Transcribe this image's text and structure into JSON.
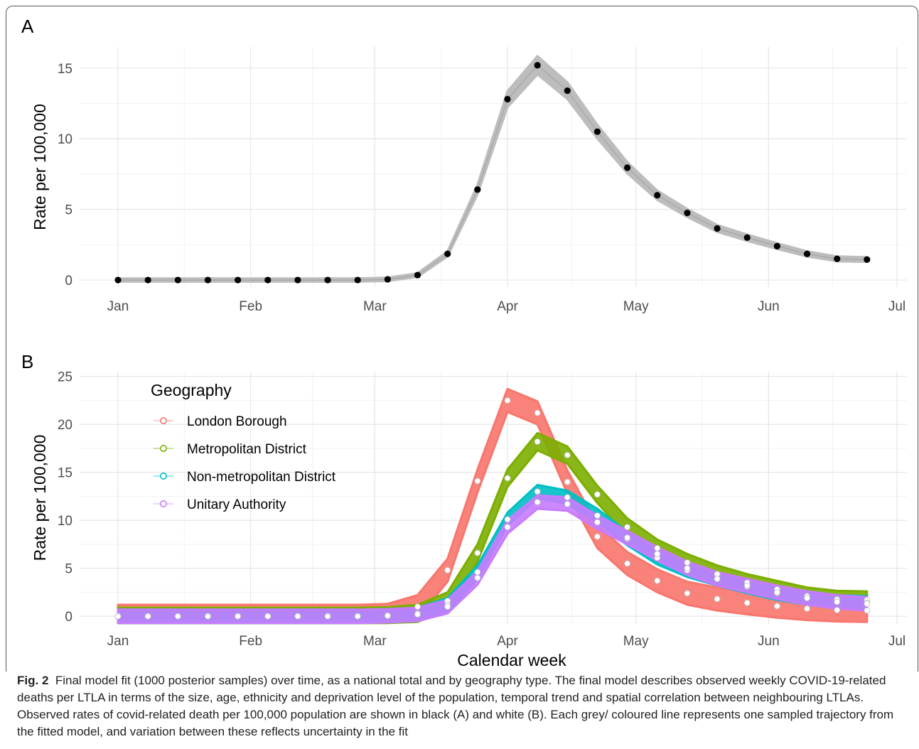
{
  "panels": {
    "a_label": "A",
    "b_label": "B"
  },
  "chart_data": [
    {
      "id": "A",
      "type": "line",
      "x_ticks": [
        "Jan",
        "Feb",
        "Mar",
        "Apr",
        "May",
        "Jun",
        "Jul"
      ],
      "x": [
        "2020-01-01",
        "2020-01-08",
        "2020-01-15",
        "2020-01-22",
        "2020-01-29",
        "2020-02-05",
        "2020-02-12",
        "2020-02-19",
        "2020-02-26",
        "2020-03-04",
        "2020-03-11",
        "2020-03-18",
        "2020-03-25",
        "2020-04-01",
        "2020-04-08",
        "2020-04-15",
        "2020-04-22",
        "2020-04-29",
        "2020-05-06",
        "2020-05-13",
        "2020-05-20",
        "2020-05-27",
        "2020-06-03",
        "2020-06-10",
        "2020-06-17",
        "2020-06-24"
      ],
      "observed": [
        0,
        0,
        0,
        0,
        0,
        0,
        0,
        0,
        0,
        0.05,
        0.35,
        1.85,
        6.4,
        12.8,
        15.2,
        13.4,
        10.5,
        7.95,
        6.0,
        4.75,
        3.65,
        3.0,
        2.4,
        1.85,
        1.5,
        1.45
      ],
      "observed_color": "#000000",
      "fit_color": "#bdbdbd",
      "ylim": [
        -0.5,
        16.5
      ],
      "y_ticks": [
        0,
        5,
        10,
        15
      ],
      "ylabel": "Rate per 100,000",
      "xlabel": "",
      "grid": true
    },
    {
      "id": "B",
      "type": "line",
      "x_ticks": [
        "Jan",
        "Feb",
        "Mar",
        "Apr",
        "May",
        "Jun",
        "Jul"
      ],
      "x": [
        "2020-01-01",
        "2020-01-08",
        "2020-01-15",
        "2020-01-22",
        "2020-01-29",
        "2020-02-05",
        "2020-02-12",
        "2020-02-19",
        "2020-02-26",
        "2020-03-04",
        "2020-03-11",
        "2020-03-18",
        "2020-03-25",
        "2020-04-01",
        "2020-04-08",
        "2020-04-15",
        "2020-04-22",
        "2020-04-29",
        "2020-05-06",
        "2020-05-13",
        "2020-05-20",
        "2020-05-27",
        "2020-06-03",
        "2020-06-10",
        "2020-06-17",
        "2020-06-24"
      ],
      "legend_title": "Geography",
      "legend_position": "top-left",
      "series": [
        {
          "name": "London Borough",
          "color": "#F8766D",
          "band": 1.2,
          "values": [
            0,
            0,
            0,
            0,
            0,
            0,
            0,
            0,
            0,
            0.1,
            1.0,
            4.8,
            14.1,
            22.5,
            21.2,
            14.0,
            8.3,
            5.5,
            3.7,
            2.4,
            1.8,
            1.4,
            1.05,
            0.8,
            0.65,
            0.6
          ]
        },
        {
          "name": "Metropolitan District",
          "color": "#7CAE00",
          "band": 0.9,
          "values": [
            0,
            0,
            0,
            0,
            0,
            0,
            0,
            0,
            0,
            0.05,
            0.3,
            1.6,
            6.6,
            14.4,
            18.2,
            16.8,
            12.7,
            9.3,
            7.1,
            5.6,
            4.4,
            3.5,
            2.8,
            2.1,
            1.75,
            1.7
          ]
        },
        {
          "name": "Non-metropolitan District",
          "color": "#00BFC4",
          "band": 0.7,
          "values": [
            0,
            0,
            0,
            0,
            0,
            0,
            0,
            0,
            0,
            0.05,
            0.2,
            1.2,
            4.6,
            10.1,
            13.0,
            12.4,
            10.5,
            8.1,
            6.1,
            4.8,
            3.9,
            3.1,
            2.4,
            1.9,
            1.5,
            1.4
          ]
        },
        {
          "name": "Unitary Authority",
          "color": "#C77CFF",
          "band": 0.7,
          "values": [
            0,
            0,
            0,
            0,
            0,
            0,
            0,
            0,
            0,
            0.05,
            0.2,
            1.0,
            4.0,
            9.3,
            11.9,
            11.7,
            9.8,
            8.2,
            6.5,
            5.0,
            3.9,
            3.2,
            2.5,
            1.9,
            1.5,
            1.3
          ]
        }
      ],
      "ylim": [
        -0.8,
        25.5
      ],
      "y_ticks": [
        0,
        5,
        10,
        15,
        20,
        25
      ],
      "ylabel": "Rate per 100,000",
      "xlabel": "Calendar week",
      "grid": true
    }
  ],
  "caption": {
    "label": "Fig. 2",
    "text": "Final model fit (1000 posterior samples) over time, as a national total and by geography type. The final model describes observed weekly COVID-19-related deaths per LTLA in terms of the size, age, ethnicity and deprivation level of the population, temporal trend and spatial correlation between neighbouring LTLAs. Observed rates of covid-related death per 100,000 population are shown in black (A) and white (B). Each grey/ coloured line represents one sampled trajectory from the fitted model, and variation between these reflects uncertainty in the fit"
  }
}
